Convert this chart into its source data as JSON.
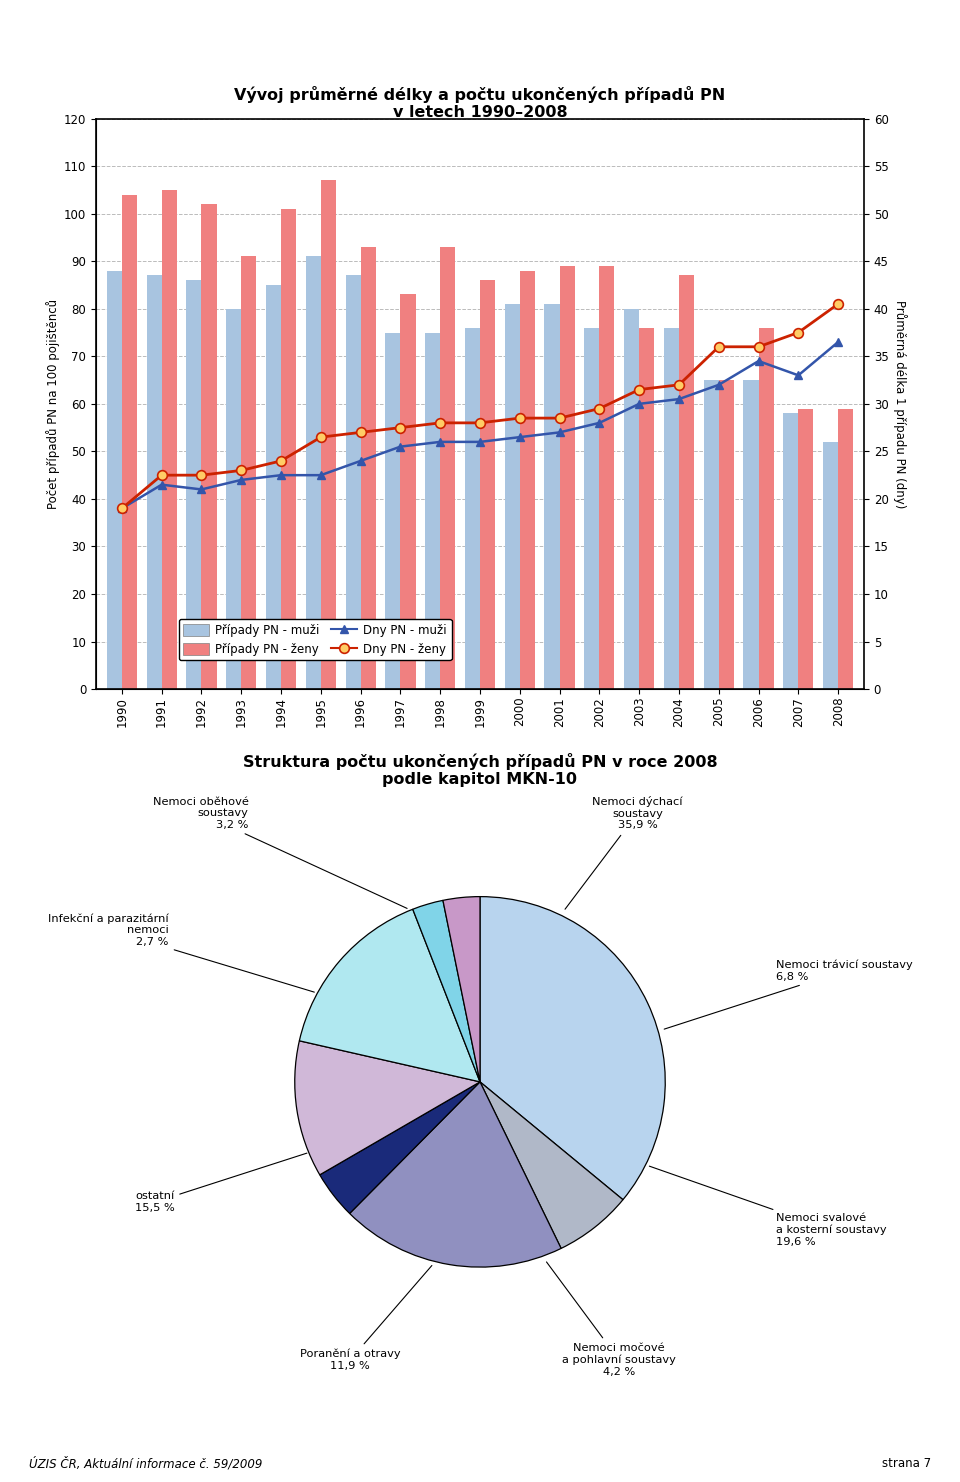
{
  "title_bar": "Vývoj průměrné délky a počtu ukončených případů PN\nv letech 1990–2008",
  "title_pie": "Struktura počtu ukončených případů PN v roce 2008\npodle kapitol MKN-10",
  "years": [
    1990,
    1991,
    1992,
    1993,
    1994,
    1995,
    1996,
    1997,
    1998,
    1999,
    2000,
    2001,
    2002,
    2003,
    2004,
    2005,
    2006,
    2007,
    2008
  ],
  "muzi_cases": [
    88,
    87,
    86,
    80,
    85,
    91,
    87,
    75,
    75,
    76,
    81,
    81,
    76,
    80,
    76,
    65,
    65,
    58,
    52
  ],
  "zeny_cases": [
    104,
    105,
    102,
    91,
    101,
    107,
    93,
    83,
    93,
    86,
    88,
    89,
    89,
    76,
    87,
    65,
    76,
    59,
    59
  ],
  "muzi_days": [
    19.0,
    21.5,
    21.0,
    22.0,
    22.5,
    22.5,
    24.0,
    25.5,
    26.0,
    26.0,
    26.5,
    27.0,
    28.0,
    30.0,
    30.5,
    32.0,
    34.5,
    33.0,
    36.5
  ],
  "zeny_days": [
    19.0,
    22.5,
    22.5,
    23.0,
    24.0,
    26.5,
    27.0,
    27.5,
    28.0,
    28.0,
    28.5,
    28.5,
    29.5,
    31.5,
    32.0,
    36.0,
    36.0,
    37.5,
    40.5
  ],
  "bar_muzi_color": "#a8c4e0",
  "bar_zeny_color": "#f08080",
  "line_muzi_color": "#3355aa",
  "line_zeny_color": "#cc2200",
  "ylabel_left": "Počet případů PN na 100 pojištěnců",
  "ylabel_right": "Průměrná délka 1 případu PN (dny)",
  "ylim_left": [
    0,
    120
  ],
  "ylim_right": [
    0,
    60
  ],
  "yticks_left": [
    0,
    10,
    20,
    30,
    40,
    50,
    60,
    70,
    80,
    90,
    100,
    110,
    120
  ],
  "yticks_right": [
    0,
    5,
    10,
    15,
    20,
    25,
    30,
    35,
    40,
    45,
    50,
    55,
    60
  ],
  "legend_labels": [
    "Případy PN - muži",
    "Případy PN - ženy",
    "Dny PN - muži",
    "Dny PN - ženy"
  ],
  "pie_values": [
    35.9,
    6.8,
    19.6,
    4.2,
    11.9,
    15.5,
    2.7,
    3.2
  ],
  "pie_labels_text": [
    "Nemoci dýchací\nsoustavy\n35,9 %",
    "Nemoci trávicí soustavy\n6,8 %",
    "Nemoci svalové\na kosterní soustavy\n19,6 %",
    "Nemoci močové\na pohlavní soustavy\n4,2 %",
    "Poranění a otravy\n11,9 %",
    "ostatní\n15,5 %",
    "Infekční a parazitární\nnemoci\n2,7 %",
    "Nemoci oběhové\nsoustavy\n3,2 %"
  ],
  "pie_colors": [
    "#b8d4ee",
    "#b0b8c8",
    "#9090c0",
    "#1a2a7a",
    "#d0b8d8",
    "#b0e8f0",
    "#80d4e8",
    "#c898c8"
  ],
  "pie_label_ha": [
    "center",
    "left",
    "left",
    "center",
    "center",
    "right",
    "right",
    "right"
  ],
  "footer_left": "ÚZIS ČR, Aktuální informace č. 59/2009",
  "footer_right": "strana 7"
}
